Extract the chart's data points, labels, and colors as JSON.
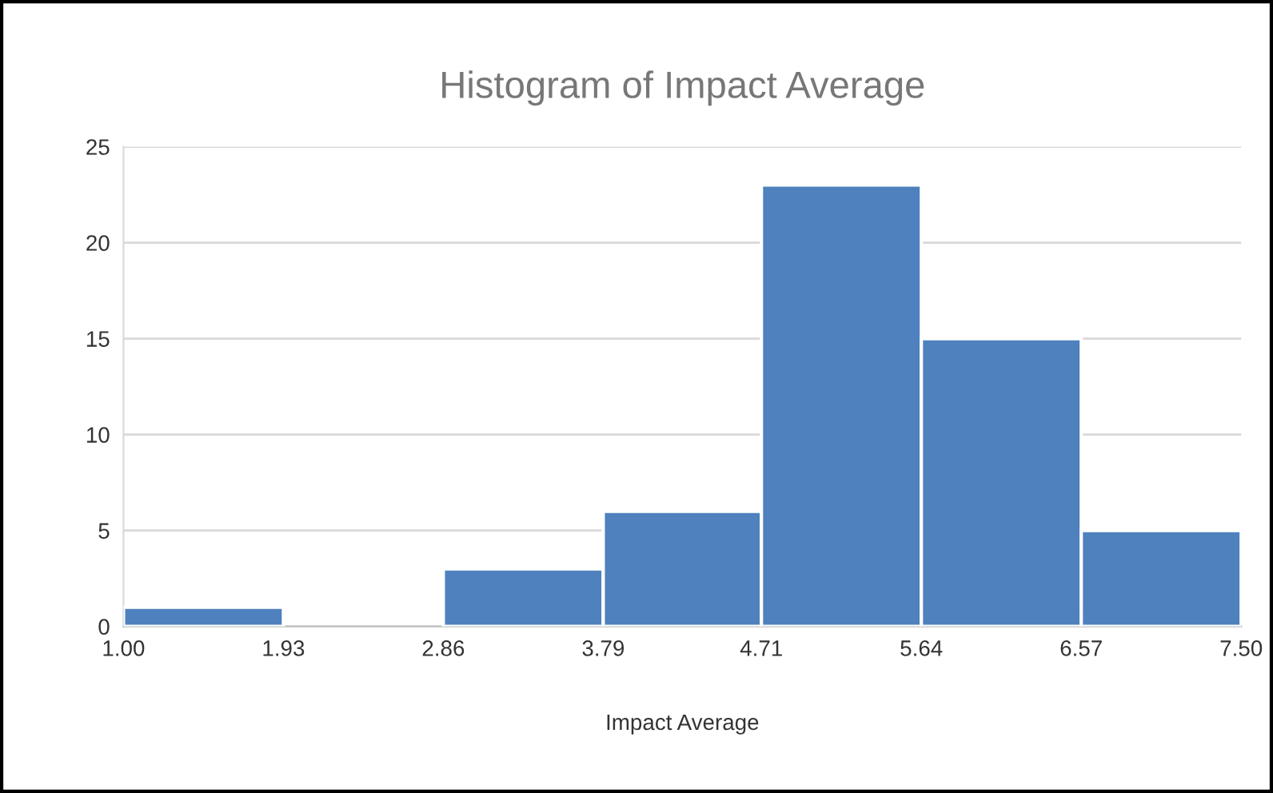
{
  "chart_data": {
    "type": "histogram",
    "title": "Histogram of Impact Average",
    "xlabel": "Impact Average",
    "bins": [
      1.0,
      1.93,
      2.86,
      3.79,
      4.71,
      5.64,
      6.57,
      7.5
    ],
    "values": [
      1,
      0,
      3,
      6,
      23,
      15,
      5
    ],
    "color": "#4e81bd",
    "xlim": [
      1.0,
      7.5
    ],
    "xticks": [
      {
        "value": 1.0,
        "label": "1.00"
      },
      {
        "value": 1.93,
        "label": "1.93"
      },
      {
        "value": 2.86,
        "label": "2.86"
      },
      {
        "value": 3.79,
        "label": "3.79"
      },
      {
        "value": 4.71,
        "label": "4.71"
      },
      {
        "value": 5.64,
        "label": "5.64"
      },
      {
        "value": 6.57,
        "label": "6.57"
      },
      {
        "value": 7.5,
        "label": "7.50"
      }
    ],
    "ylim": [
      0,
      25
    ],
    "yticks": [
      0,
      5,
      10,
      15,
      20,
      25
    ],
    "grid": "y"
  }
}
